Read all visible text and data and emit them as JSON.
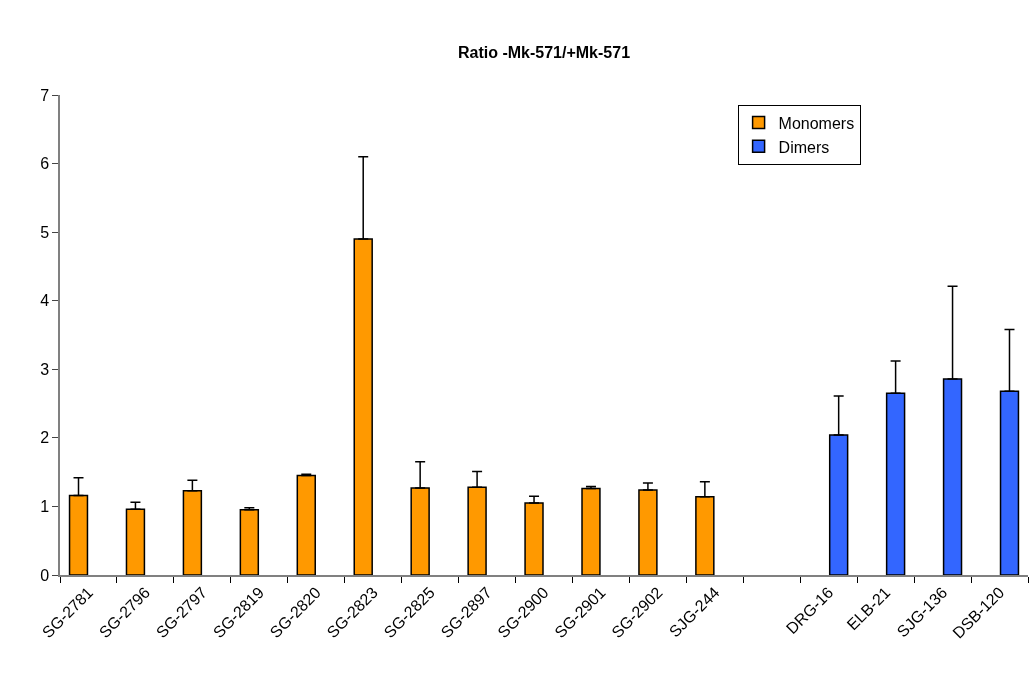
{
  "chart_data": {
    "type": "bar",
    "title": "Ratio -Mk-571/+Mk-571",
    "categories": [
      "SG-2781",
      "SG-2796",
      "SG-2797",
      "SG-2819",
      "SG-2820",
      "SG-2823",
      "SG-2825",
      "SG-2897",
      "SG-2900",
      "SG-2901",
      "SG-2902",
      "SJG-244",
      null,
      "DRG-16",
      "ELB-21",
      "SJG-136",
      "DSB-120"
    ],
    "series": [
      {
        "name": "Monomers",
        "color": "#ff9900",
        "values": [
          1.16,
          0.96,
          1.23,
          0.95,
          1.45,
          4.9,
          1.27,
          1.28,
          1.05,
          1.26,
          1.24,
          1.14,
          null,
          null,
          null,
          null,
          null
        ],
        "errors": [
          [
            1.16,
            1.42
          ],
          [
            0.96,
            1.06
          ],
          [
            1.23,
            1.38
          ],
          [
            0.95,
            0.98
          ],
          [
            1.45,
            1.47
          ],
          [
            4.9,
            6.1
          ],
          [
            1.27,
            1.65
          ],
          [
            1.28,
            1.51
          ],
          [
            1.05,
            1.15
          ],
          [
            1.26,
            1.29
          ],
          [
            1.24,
            1.34
          ],
          [
            1.14,
            1.36
          ],
          null,
          null,
          null,
          null,
          null
        ]
      },
      {
        "name": "Dimers",
        "color": "#3366ff",
        "values": [
          null,
          null,
          null,
          null,
          null,
          null,
          null,
          null,
          null,
          null,
          null,
          null,
          null,
          2.04,
          2.65,
          2.86,
          2.68
        ],
        "errors": [
          null,
          null,
          null,
          null,
          null,
          null,
          null,
          null,
          null,
          null,
          null,
          null,
          null,
          [
            2.04,
            2.61
          ],
          [
            2.65,
            3.12
          ],
          [
            2.86,
            4.21
          ],
          [
            2.68,
            3.58
          ]
        ]
      }
    ],
    "ylim": [
      0,
      7
    ],
    "yticks": [
      0,
      1,
      2,
      3,
      4,
      5,
      6,
      7
    ],
    "grid": false,
    "legend": "top right"
  }
}
